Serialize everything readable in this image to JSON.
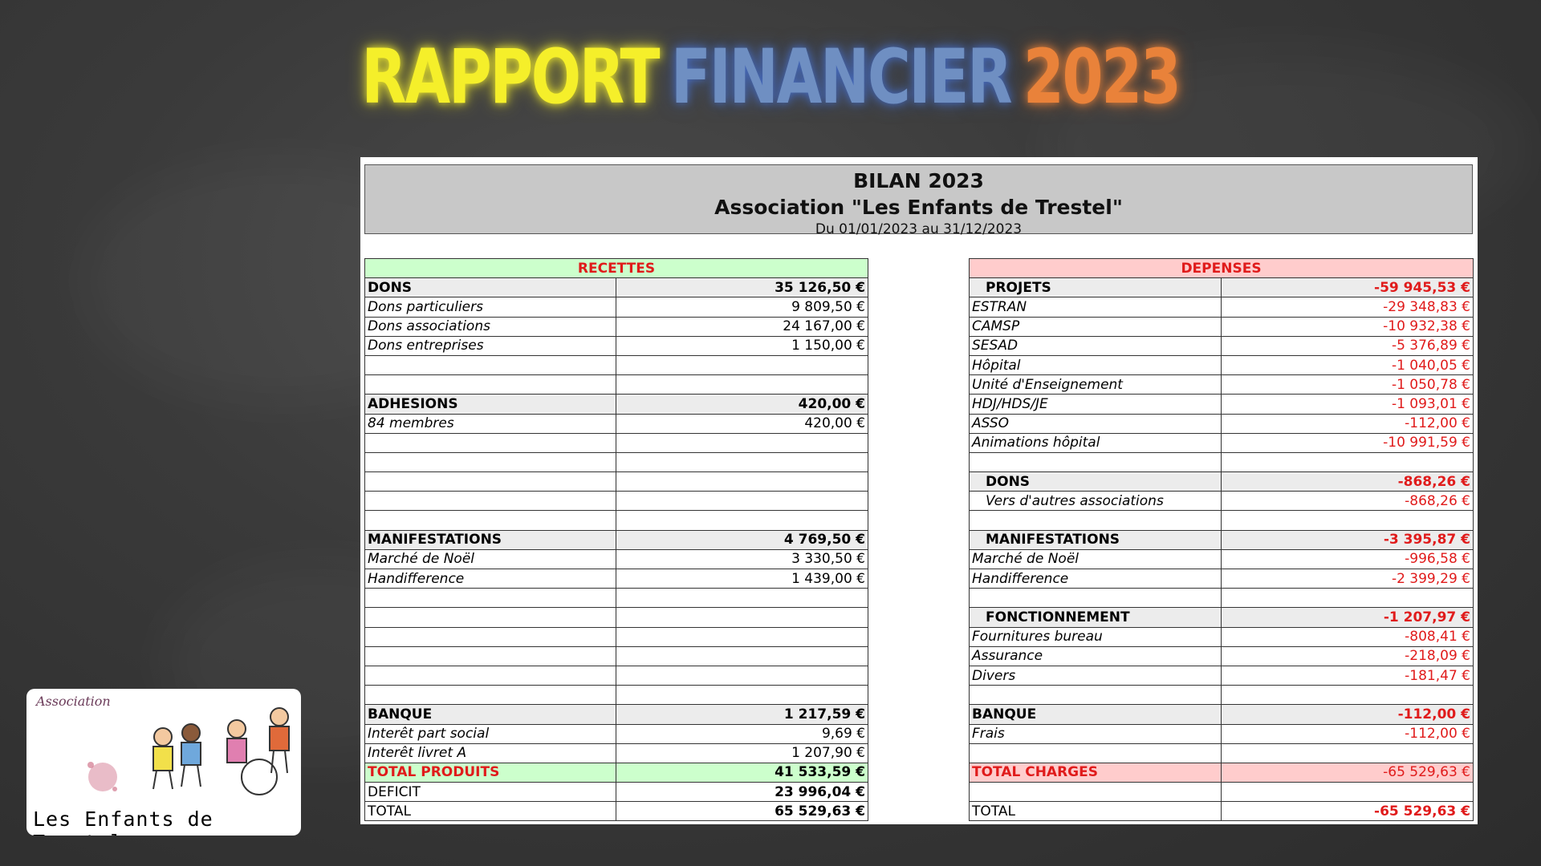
{
  "title": {
    "part1": "RAPPORT",
    "part2": "FINANCIER",
    "part3": "2023"
  },
  "header": {
    "line1": "BILAN 2023",
    "line2": "Association \"Les Enfants de Trestel\"",
    "line3": "Du 01/01/2023 au 31/12/2023"
  },
  "recettes": {
    "heading": "RECETTES",
    "rows": [
      {
        "type": "sec",
        "label": "DONS",
        "amount": "35 126,50 €"
      },
      {
        "type": "item",
        "label": "Dons particuliers",
        "amount": "9 809,50 €"
      },
      {
        "type": "item",
        "label": "Dons associations",
        "amount": "24 167,00 €"
      },
      {
        "type": "item",
        "label": "Dons entreprises",
        "amount": "1 150,00 €"
      },
      {
        "type": "empty",
        "label": "",
        "amount": ""
      },
      {
        "type": "empty",
        "label": "",
        "amount": ""
      },
      {
        "type": "sec",
        "label": "ADHESIONS",
        "amount": "420,00 €"
      },
      {
        "type": "item",
        "label": "84 membres",
        "amount": "420,00 €"
      },
      {
        "type": "empty",
        "label": "",
        "amount": ""
      },
      {
        "type": "empty",
        "label": "",
        "amount": ""
      },
      {
        "type": "empty",
        "label": "",
        "amount": ""
      },
      {
        "type": "empty",
        "label": "",
        "amount": ""
      },
      {
        "type": "empty",
        "label": "",
        "amount": ""
      },
      {
        "type": "sec",
        "label": "MANIFESTATIONS",
        "amount": "4 769,50 €"
      },
      {
        "type": "item",
        "label": "Marché de Noël",
        "amount": "3 330,50 €"
      },
      {
        "type": "item",
        "label": "Handifference",
        "amount": "1 439,00 €"
      },
      {
        "type": "empty",
        "label": "",
        "amount": ""
      },
      {
        "type": "empty",
        "label": "",
        "amount": ""
      },
      {
        "type": "empty",
        "label": "",
        "amount": ""
      },
      {
        "type": "empty",
        "label": "",
        "amount": ""
      },
      {
        "type": "empty",
        "label": "",
        "amount": ""
      },
      {
        "type": "empty",
        "label": "",
        "amount": ""
      },
      {
        "type": "sec",
        "label": "BANQUE",
        "amount": "1 217,59 €"
      },
      {
        "type": "item",
        "label": "Interêt part social",
        "amount": "9,69 €"
      },
      {
        "type": "item",
        "label": "Interêt livret A",
        "amount": "1 207,90 €"
      },
      {
        "type": "total-green",
        "label": "TOTAL PRODUITS",
        "amount": "41 533,59 €"
      },
      {
        "type": "plain",
        "label": "DEFICIT",
        "amount": "23 996,04 €"
      },
      {
        "type": "plain",
        "label": "TOTAL",
        "amount": "65 529,63 €"
      }
    ]
  },
  "depenses": {
    "heading": "DEPENSES",
    "rows": [
      {
        "type": "sec",
        "indent": true,
        "label": "PROJETS",
        "amount": "-59 945,53 €"
      },
      {
        "type": "item",
        "label": "ESTRAN",
        "amount": "-29 348,83 €"
      },
      {
        "type": "item",
        "label": "CAMSP",
        "amount": "-10 932,38 €"
      },
      {
        "type": "item",
        "label": "SESAD",
        "amount": "-5 376,89 €"
      },
      {
        "type": "item",
        "label": "Hôpital",
        "amount": "-1 040,05 €"
      },
      {
        "type": "item",
        "label": "Unité d'Enseignement",
        "amount": "-1 050,78 €"
      },
      {
        "type": "item",
        "label": "HDJ/HDS/JE",
        "amount": "-1 093,01 €"
      },
      {
        "type": "item",
        "label": "ASSO",
        "amount": "-112,00 €"
      },
      {
        "type": "item",
        "label": "Animations hôpital",
        "amount": "-10 991,59 €"
      },
      {
        "type": "empty",
        "label": "",
        "amount": ""
      },
      {
        "type": "sec",
        "indent": true,
        "label": "DONS",
        "amount": "-868,26 €"
      },
      {
        "type": "item",
        "indent": true,
        "label": "Vers d'autres associations",
        "amount": "-868,26 €"
      },
      {
        "type": "empty",
        "label": "",
        "amount": ""
      },
      {
        "type": "sec",
        "indent": true,
        "label": "MANIFESTATIONS",
        "amount": "-3 395,87 €"
      },
      {
        "type": "item",
        "label": "Marché de Noël",
        "amount": "-996,58 €"
      },
      {
        "type": "item",
        "label": "Handifference",
        "amount": "-2 399,29 €"
      },
      {
        "type": "empty",
        "label": "",
        "amount": ""
      },
      {
        "type": "sec",
        "indent": true,
        "label": "FONCTIONNEMENT",
        "amount": "-1 207,97 €"
      },
      {
        "type": "item",
        "label": "Fournitures bureau",
        "amount": "-808,41 €"
      },
      {
        "type": "item",
        "label": "Assurance",
        "amount": "-218,09 €"
      },
      {
        "type": "item",
        "label": "Divers",
        "amount": "-181,47 €"
      },
      {
        "type": "empty",
        "label": "",
        "amount": ""
      },
      {
        "type": "sec",
        "label": "BANQUE",
        "amount": "-112,00 €"
      },
      {
        "type": "item",
        "label": "Frais",
        "amount": "-112,00 €"
      },
      {
        "type": "empty",
        "label": "",
        "amount": ""
      },
      {
        "type": "total-pink",
        "label": "TOTAL CHARGES",
        "amount": "-65 529,63 €"
      },
      {
        "type": "empty",
        "label": "",
        "amount": ""
      },
      {
        "type": "plain",
        "label": "TOTAL",
        "amount": "-65 529,63 €"
      }
    ]
  },
  "logo": {
    "top": "Association",
    "bottom": "Les Enfants de Trestel"
  }
}
